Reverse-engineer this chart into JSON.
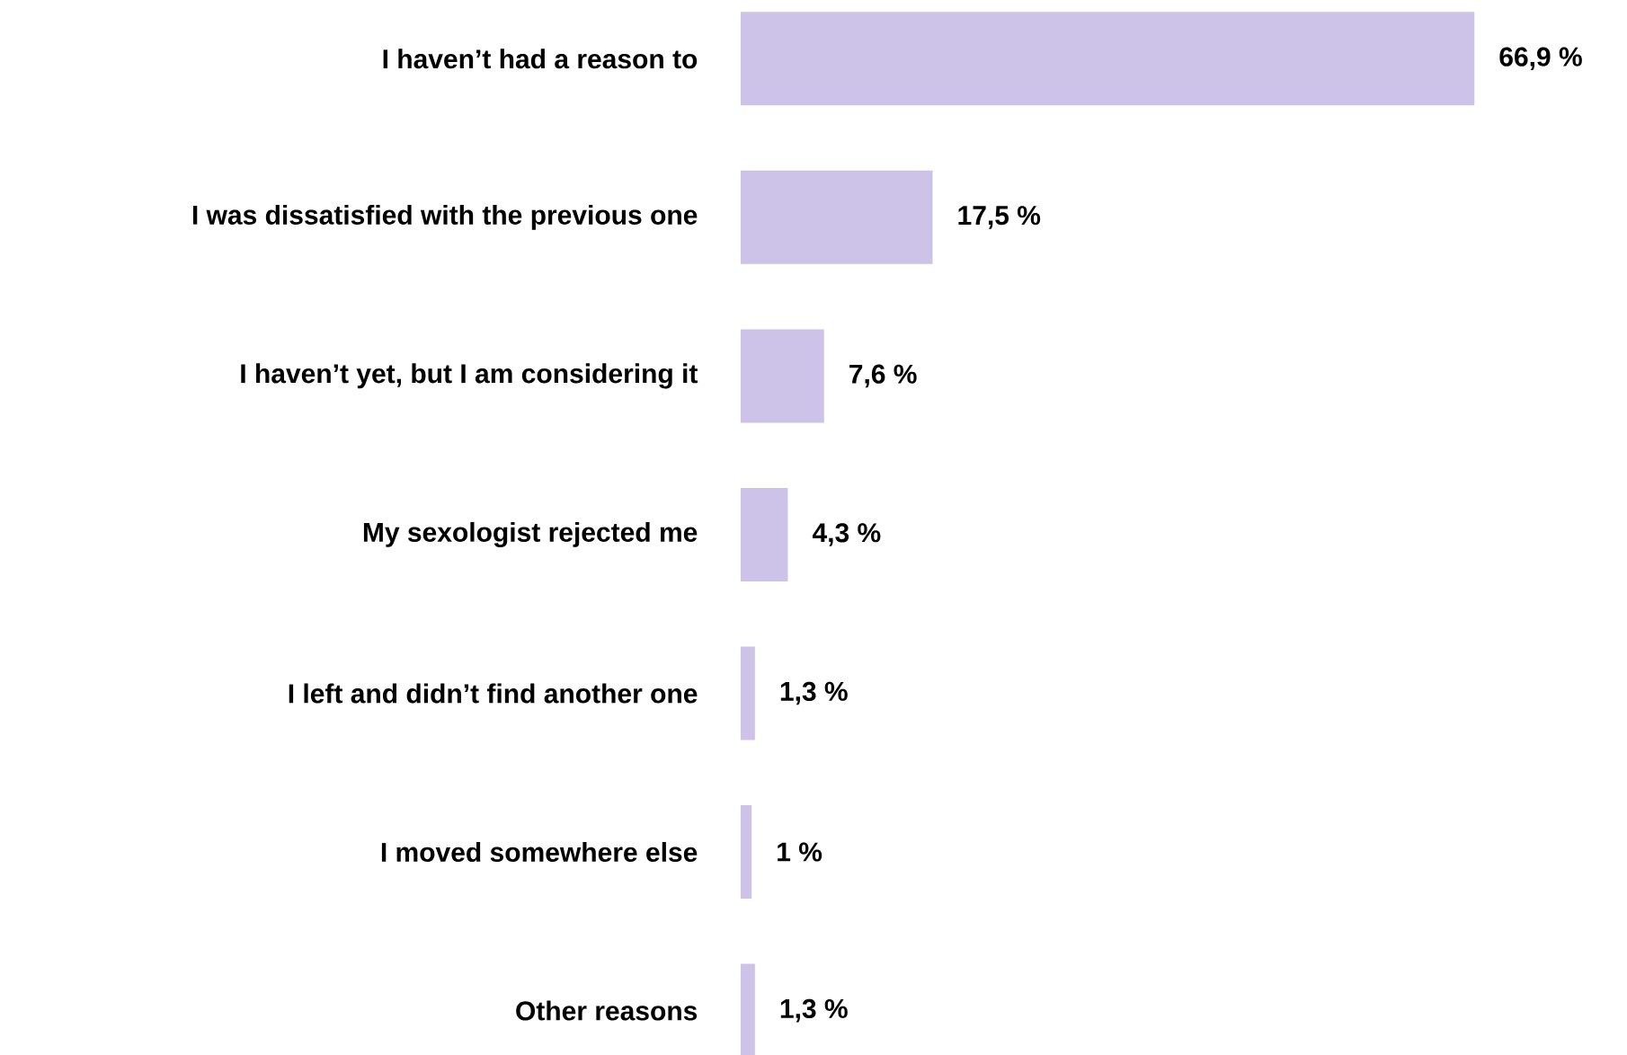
{
  "chart_data": {
    "type": "bar",
    "orientation": "horizontal",
    "categories": [
      "I haven’t had a reason to",
      "I was dissatisfied with the previous one",
      "I haven’t yet, but I am considering it",
      "My sexologist rejected me",
      "I left and didn’t find another one",
      "I moved somewhere else",
      "Other reasons"
    ],
    "values": [
      66.9,
      17.5,
      7.6,
      4.3,
      1.3,
      1,
      1.3
    ],
    "value_labels": [
      "66,9 %",
      "17,5 %",
      "7,6 %",
      "4,3 %",
      "1,3 %",
      "1 %",
      "1,3 %"
    ],
    "color": "#cdc3e9"
  }
}
